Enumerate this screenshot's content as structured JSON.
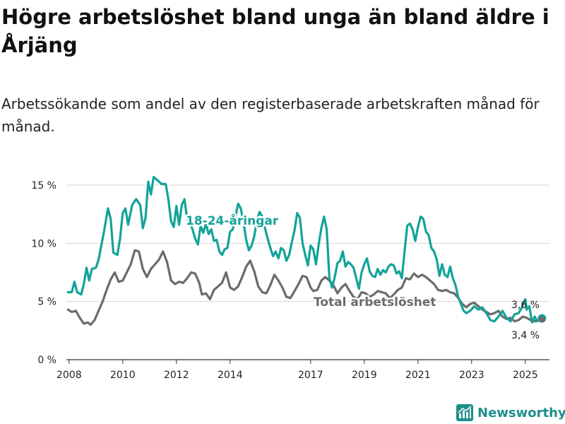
{
  "title": "Högre arbetslöshet bland unga än bland äldre i Årjäng",
  "subtitle": "Arbetssökande som andel av den registerbaserade arbetskraften månad för månad.",
  "brand": {
    "name": "Newsworthy",
    "icon": "bar-chart-logo-icon",
    "color": "#1d8f8a"
  },
  "chart_data": {
    "type": "line",
    "title": "Högre arbetslöshet bland unga än bland äldre i Årjäng",
    "xlabel": "",
    "ylabel": "",
    "xlim": [
      2007.9,
      2025.9
    ],
    "ylim": [
      0,
      15
    ],
    "grid": true,
    "x_ticks": [
      {
        "value": 2008,
        "label": "2008"
      },
      {
        "value": 2010,
        "label": "2010"
      },
      {
        "value": 2012,
        "label": "2012"
      },
      {
        "value": 2014,
        "label": "2014"
      },
      {
        "value": 2017,
        "label": "2017"
      },
      {
        "value": 2019,
        "label": "2019"
      },
      {
        "value": 2021,
        "label": "2021"
      },
      {
        "value": 2023,
        "label": "2023"
      },
      {
        "value": 2025,
        "label": "2025"
      }
    ],
    "y_ticks": [
      {
        "value": 0,
        "label": "0 %"
      },
      {
        "value": 5,
        "label": "5 %"
      },
      {
        "value": 10,
        "label": "10 %"
      },
      {
        "value": 15,
        "label": "15 %"
      }
    ],
    "series": [
      {
        "name": "Total arbetslöshet",
        "label": "Total arbetslöshet",
        "color": "#6b6b6b",
        "end_label": "3,4 %",
        "points": [
          [
            2007.96,
            4.3
          ],
          [
            2008.1,
            4.1
          ],
          [
            2008.25,
            4.2
          ],
          [
            2008.4,
            3.6
          ],
          [
            2008.55,
            3.1
          ],
          [
            2008.7,
            3.2
          ],
          [
            2008.8,
            3.0
          ],
          [
            2008.95,
            3.4
          ],
          [
            2009.1,
            4.2
          ],
          [
            2009.25,
            5.0
          ],
          [
            2009.4,
            6.0
          ],
          [
            2009.55,
            6.9
          ],
          [
            2009.7,
            7.5
          ],
          [
            2009.85,
            6.7
          ],
          [
            2010.0,
            6.8
          ],
          [
            2010.15,
            7.5
          ],
          [
            2010.3,
            8.2
          ],
          [
            2010.45,
            9.4
          ],
          [
            2010.6,
            9.3
          ],
          [
            2010.75,
            7.8
          ],
          [
            2010.9,
            7.1
          ],
          [
            2011.05,
            7.8
          ],
          [
            2011.2,
            8.2
          ],
          [
            2011.35,
            8.6
          ],
          [
            2011.5,
            9.3
          ],
          [
            2011.65,
            8.4
          ],
          [
            2011.8,
            6.8
          ],
          [
            2011.95,
            6.5
          ],
          [
            2012.1,
            6.7
          ],
          [
            2012.25,
            6.6
          ],
          [
            2012.4,
            7.0
          ],
          [
            2012.55,
            7.5
          ],
          [
            2012.7,
            7.4
          ],
          [
            2012.85,
            6.6
          ],
          [
            2012.95,
            5.6
          ],
          [
            2013.1,
            5.7
          ],
          [
            2013.25,
            5.2
          ],
          [
            2013.4,
            6.0
          ],
          [
            2013.55,
            6.3
          ],
          [
            2013.7,
            6.6
          ],
          [
            2013.85,
            7.5
          ],
          [
            2014.0,
            6.2
          ],
          [
            2014.15,
            6.0
          ],
          [
            2014.3,
            6.3
          ],
          [
            2014.45,
            7.1
          ],
          [
            2014.6,
            8.0
          ],
          [
            2014.75,
            8.5
          ],
          [
            2014.9,
            7.6
          ],
          [
            2015.05,
            6.3
          ],
          [
            2015.2,
            5.8
          ],
          [
            2015.35,
            5.7
          ],
          [
            2015.5,
            6.4
          ],
          [
            2015.65,
            7.3
          ],
          [
            2015.8,
            6.8
          ],
          [
            2015.95,
            6.2
          ],
          [
            2016.1,
            5.4
          ],
          [
            2016.25,
            5.3
          ],
          [
            2016.4,
            5.9
          ],
          [
            2016.55,
            6.5
          ],
          [
            2016.7,
            7.2
          ],
          [
            2016.85,
            7.1
          ],
          [
            2017.0,
            6.2
          ],
          [
            2017.1,
            5.9
          ],
          [
            2017.25,
            6.0
          ],
          [
            2017.4,
            6.8
          ],
          [
            2017.55,
            7.1
          ],
          [
            2017.7,
            6.8
          ],
          [
            2017.85,
            6.4
          ],
          [
            2018.0,
            5.7
          ],
          [
            2018.15,
            6.2
          ],
          [
            2018.3,
            6.5
          ],
          [
            2018.45,
            5.9
          ],
          [
            2018.6,
            5.4
          ],
          [
            2018.75,
            5.2
          ],
          [
            2018.9,
            5.8
          ],
          [
            2019.05,
            5.7
          ],
          [
            2019.2,
            5.4
          ],
          [
            2019.35,
            5.6
          ],
          [
            2019.5,
            5.9
          ],
          [
            2019.65,
            5.8
          ],
          [
            2019.8,
            5.7
          ],
          [
            2019.95,
            5.3
          ],
          [
            2020.1,
            5.6
          ],
          [
            2020.25,
            6.0
          ],
          [
            2020.4,
            6.2
          ],
          [
            2020.55,
            7.0
          ],
          [
            2020.7,
            6.9
          ],
          [
            2020.85,
            7.4
          ],
          [
            2021.0,
            7.1
          ],
          [
            2021.15,
            7.3
          ],
          [
            2021.3,
            7.1
          ],
          [
            2021.45,
            6.8
          ],
          [
            2021.6,
            6.5
          ],
          [
            2021.75,
            6.0
          ],
          [
            2021.9,
            5.9
          ],
          [
            2022.05,
            6.0
          ],
          [
            2022.2,
            5.8
          ],
          [
            2022.35,
            5.7
          ],
          [
            2022.5,
            5.3
          ],
          [
            2022.65,
            4.8
          ],
          [
            2022.8,
            4.5
          ],
          [
            2022.95,
            4.8
          ],
          [
            2023.1,
            4.9
          ],
          [
            2023.25,
            4.6
          ],
          [
            2023.4,
            4.3
          ],
          [
            2023.55,
            4.1
          ],
          [
            2023.7,
            3.9
          ],
          [
            2023.85,
            4.0
          ],
          [
            2024.0,
            4.2
          ],
          [
            2024.15,
            3.7
          ],
          [
            2024.3,
            3.5
          ],
          [
            2024.45,
            3.6
          ],
          [
            2024.6,
            3.3
          ],
          [
            2024.75,
            3.4
          ],
          [
            2024.9,
            3.7
          ],
          [
            2025.05,
            3.6
          ],
          [
            2025.2,
            3.4
          ],
          [
            2025.35,
            3.3
          ],
          [
            2025.5,
            3.4
          ],
          [
            2025.62,
            3.45
          ]
        ]
      },
      {
        "name": "18-24-åringar",
        "label": "18-24-åringar",
        "color": "#13a39a",
        "end_label": "3,6 %",
        "points": [
          [
            2007.96,
            5.8
          ],
          [
            2008.1,
            5.8
          ],
          [
            2008.2,
            6.7
          ],
          [
            2008.3,
            5.8
          ],
          [
            2008.45,
            5.6
          ],
          [
            2008.55,
            6.5
          ],
          [
            2008.65,
            7.9
          ],
          [
            2008.75,
            6.8
          ],
          [
            2008.85,
            7.8
          ],
          [
            2009.0,
            7.9
          ],
          [
            2009.1,
            8.6
          ],
          [
            2009.2,
            9.8
          ],
          [
            2009.3,
            11.0
          ],
          [
            2009.45,
            13.0
          ],
          [
            2009.55,
            12.1
          ],
          [
            2009.65,
            9.2
          ],
          [
            2009.8,
            9.0
          ],
          [
            2009.9,
            10.4
          ],
          [
            2010.0,
            12.6
          ],
          [
            2010.1,
            13.0
          ],
          [
            2010.2,
            11.6
          ],
          [
            2010.35,
            13.3
          ],
          [
            2010.5,
            13.8
          ],
          [
            2010.65,
            13.3
          ],
          [
            2010.75,
            11.3
          ],
          [
            2010.85,
            12.2
          ],
          [
            2010.95,
            15.3
          ],
          [
            2011.05,
            14.2
          ],
          [
            2011.15,
            15.7
          ],
          [
            2011.3,
            15.4
          ],
          [
            2011.45,
            15.1
          ],
          [
            2011.6,
            15.1
          ],
          [
            2011.7,
            13.8
          ],
          [
            2011.8,
            11.9
          ],
          [
            2011.9,
            11.4
          ],
          [
            2012.0,
            13.2
          ],
          [
            2012.1,
            11.6
          ],
          [
            2012.2,
            13.3
          ],
          [
            2012.3,
            13.8
          ],
          [
            2012.4,
            12.1
          ],
          [
            2012.5,
            11.8
          ],
          [
            2012.6,
            11.2
          ],
          [
            2012.7,
            10.4
          ],
          [
            2012.8,
            9.9
          ],
          [
            2012.9,
            11.5
          ],
          [
            2013.0,
            10.9
          ],
          [
            2013.1,
            11.7
          ],
          [
            2013.2,
            10.8
          ],
          [
            2013.3,
            11.2
          ],
          [
            2013.4,
            10.2
          ],
          [
            2013.5,
            10.3
          ],
          [
            2013.6,
            9.3
          ],
          [
            2013.7,
            9.0
          ],
          [
            2013.8,
            9.5
          ],
          [
            2013.9,
            9.6
          ],
          [
            2014.0,
            11.0
          ],
          [
            2014.1,
            11.2
          ],
          [
            2014.2,
            12.3
          ],
          [
            2014.3,
            13.4
          ],
          [
            2014.4,
            13.0
          ],
          [
            2014.5,
            11.8
          ],
          [
            2014.6,
            10.3
          ],
          [
            2014.7,
            9.4
          ],
          [
            2014.8,
            9.8
          ],
          [
            2014.9,
            10.6
          ],
          [
            2015.0,
            12.0
          ],
          [
            2015.1,
            12.7
          ],
          [
            2015.2,
            12.3
          ],
          [
            2015.3,
            11.3
          ],
          [
            2015.4,
            10.4
          ],
          [
            2015.5,
            9.6
          ],
          [
            2015.6,
            8.9
          ],
          [
            2015.7,
            9.3
          ],
          [
            2015.8,
            8.7
          ],
          [
            2015.9,
            9.6
          ],
          [
            2016.0,
            9.4
          ],
          [
            2016.1,
            8.5
          ],
          [
            2016.2,
            9.0
          ],
          [
            2016.3,
            10.1
          ],
          [
            2016.4,
            11.1
          ],
          [
            2016.5,
            12.6
          ],
          [
            2016.6,
            12.2
          ],
          [
            2016.7,
            10.0
          ],
          [
            2016.8,
            9.0
          ],
          [
            2016.9,
            8.1
          ],
          [
            2017.0,
            9.8
          ],
          [
            2017.1,
            9.5
          ],
          [
            2017.2,
            8.2
          ],
          [
            2017.3,
            9.9
          ],
          [
            2017.4,
            11.3
          ],
          [
            2017.5,
            12.3
          ],
          [
            2017.6,
            11.2
          ],
          [
            2017.7,
            7.0
          ],
          [
            2017.8,
            6.2
          ],
          [
            2017.9,
            7.1
          ],
          [
            2018.0,
            8.3
          ],
          [
            2018.1,
            8.5
          ],
          [
            2018.2,
            9.3
          ],
          [
            2018.3,
            8.0
          ],
          [
            2018.4,
            8.4
          ],
          [
            2018.5,
            8.2
          ],
          [
            2018.6,
            7.9
          ],
          [
            2018.7,
            7.0
          ],
          [
            2018.8,
            6.1
          ],
          [
            2018.9,
            7.5
          ],
          [
            2019.0,
            8.2
          ],
          [
            2019.1,
            8.7
          ],
          [
            2019.2,
            7.6
          ],
          [
            2019.3,
            7.2
          ],
          [
            2019.4,
            7.1
          ],
          [
            2019.5,
            7.8
          ],
          [
            2019.6,
            7.3
          ],
          [
            2019.7,
            7.7
          ],
          [
            2019.8,
            7.5
          ],
          [
            2019.9,
            8.0
          ],
          [
            2020.0,
            8.2
          ],
          [
            2020.1,
            8.1
          ],
          [
            2020.2,
            7.4
          ],
          [
            2020.3,
            7.6
          ],
          [
            2020.4,
            7.0
          ],
          [
            2020.5,
            9.3
          ],
          [
            2020.6,
            11.5
          ],
          [
            2020.7,
            11.7
          ],
          [
            2020.8,
            11.2
          ],
          [
            2020.9,
            10.2
          ],
          [
            2021.0,
            11.4
          ],
          [
            2021.1,
            12.3
          ],
          [
            2021.2,
            12.1
          ],
          [
            2021.3,
            11.0
          ],
          [
            2021.4,
            10.7
          ],
          [
            2021.5,
            9.6
          ],
          [
            2021.6,
            9.3
          ],
          [
            2021.7,
            8.6
          ],
          [
            2021.8,
            7.2
          ],
          [
            2021.9,
            8.2
          ],
          [
            2022.0,
            7.3
          ],
          [
            2022.1,
            7.1
          ],
          [
            2022.2,
            8.0
          ],
          [
            2022.3,
            7.0
          ],
          [
            2022.4,
            6.4
          ],
          [
            2022.5,
            5.4
          ],
          [
            2022.6,
            4.8
          ],
          [
            2022.7,
            4.2
          ],
          [
            2022.8,
            4.0
          ],
          [
            2022.95,
            4.2
          ],
          [
            2023.1,
            4.6
          ],
          [
            2023.25,
            4.3
          ],
          [
            2023.4,
            4.5
          ],
          [
            2023.55,
            4.0
          ],
          [
            2023.7,
            3.4
          ],
          [
            2023.85,
            3.3
          ],
          [
            2024.0,
            3.7
          ],
          [
            2024.15,
            4.2
          ],
          [
            2024.3,
            3.6
          ],
          [
            2024.45,
            3.3
          ],
          [
            2024.6,
            3.9
          ],
          [
            2024.75,
            4.0
          ],
          [
            2024.9,
            4.6
          ],
          [
            2025.0,
            5.2
          ],
          [
            2025.05,
            4.3
          ],
          [
            2025.15,
            4.6
          ],
          [
            2025.25,
            3.2
          ],
          [
            2025.35,
            3.7
          ],
          [
            2025.45,
            3.3
          ],
          [
            2025.55,
            3.5
          ],
          [
            2025.62,
            3.55
          ]
        ]
      }
    ]
  }
}
